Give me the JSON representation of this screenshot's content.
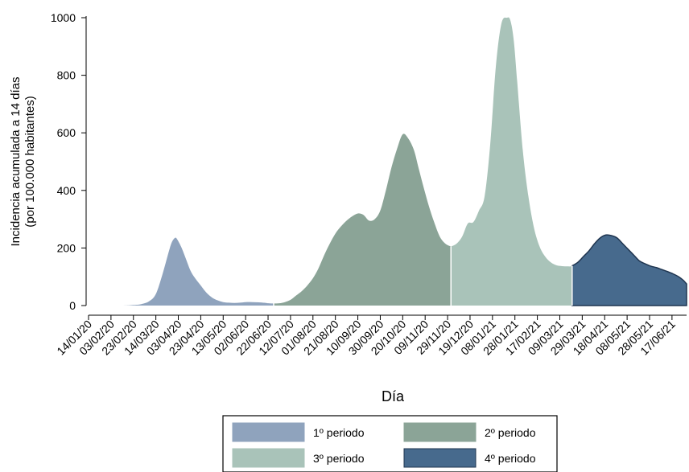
{
  "chart_data": {
    "type": "area",
    "xlabel": "Día",
    "ylabel": [
      "Incidencia acumulada a 14 días",
      "(por 100.000 habitantes)"
    ],
    "ylim": [
      0,
      1000
    ],
    "yticks": [
      0,
      200,
      400,
      600,
      800,
      1000
    ],
    "x_range": [
      "14/01/20",
      "30/06/21"
    ],
    "xticks": [
      "14/01/20",
      "03/02/20",
      "23/02/20",
      "14/03/20",
      "03/04/20",
      "23/04/20",
      "13/05/20",
      "02/06/20",
      "22/06/20",
      "12/07/20",
      "01/08/20",
      "21/08/20",
      "10/09/20",
      "30/09/20",
      "20/10/20",
      "09/11/20",
      "29/11/20",
      "19/12/20",
      "08/01/21",
      "28/01/21",
      "17/02/21",
      "09/03/21",
      "29/03/21",
      "18/04/21",
      "08/05/21",
      "28/05/21",
      "17/06/21"
    ],
    "grid": false,
    "legend_position": "bottom",
    "series": [
      {
        "name": "1º periodo",
        "color": "#8fa3bd",
        "x": [
          "14/01/20",
          "13/02/20",
          "23/02/20",
          "01/03/20",
          "08/03/20",
          "14/03/20",
          "20/03/20",
          "25/03/20",
          "28/03/20",
          "31/03/20",
          "02/04/20",
          "06/04/20",
          "10/04/20",
          "14/04/20",
          "18/04/20",
          "23/04/20",
          "28/04/20",
          "03/05/20",
          "08/05/20",
          "13/05/20",
          "18/05/20",
          "23/05/20",
          "28/05/20",
          "02/06/20",
          "08/06/20",
          "14/06/20",
          "20/06/20",
          "22/06/20",
          "27/06/20"
        ],
        "values": [
          0,
          0,
          2,
          5,
          15,
          40,
          110,
          180,
          218,
          235,
          230,
          200,
          160,
          120,
          95,
          70,
          45,
          28,
          18,
          12,
          10,
          9,
          10,
          12,
          12,
          11,
          9,
          8,
          7
        ]
      },
      {
        "name": "2º periodo",
        "color": "#8ba497",
        "x": [
          "27/06/20",
          "02/07/20",
          "07/07/20",
          "12/07/20",
          "17/07/20",
          "22/07/20",
          "27/07/20",
          "01/08/20",
          "06/08/20",
          "11/08/20",
          "16/08/20",
          "21/08/20",
          "26/08/20",
          "31/08/20",
          "05/09/20",
          "10/09/20",
          "15/09/20",
          "20/09/20",
          "25/09/20",
          "30/09/20",
          "05/10/20",
          "10/10/20",
          "15/10/20",
          "20/10/20",
          "25/10/20",
          "30/10/20",
          "03/11/20",
          "07/11/20",
          "12/11/20",
          "17/11/20",
          "22/11/20",
          "27/11/20",
          "02/12/20"
        ],
        "values": [
          7,
          8,
          12,
          20,
          35,
          50,
          70,
          95,
          130,
          175,
          215,
          250,
          275,
          295,
          310,
          320,
          315,
          295,
          300,
          330,
          400,
          480,
          545,
          595,
          580,
          540,
          480,
          420,
          350,
          290,
          240,
          215,
          205
        ]
      },
      {
        "name": "3º periodo",
        "color": "#a9c3b9",
        "x": [
          "02/12/20",
          "07/12/20",
          "12/12/20",
          "17/12/20",
          "22/12/20",
          "27/12/20",
          "01/01/21",
          "06/01/21",
          "11/01/21",
          "16/01/21",
          "21/01/21",
          "24/01/21",
          "27/01/21",
          "30/01/21",
          "04/02/21",
          "09/02/21",
          "14/02/21",
          "19/02/21",
          "24/02/21",
          "01/03/21",
          "06/03/21",
          "11/03/21",
          "16/03/21",
          "20/03/21"
        ],
        "values": [
          205,
          215,
          240,
          285,
          290,
          330,
          380,
          560,
          830,
          980,
          1000,
          990,
          920,
          780,
          540,
          380,
          270,
          205,
          170,
          150,
          140,
          137,
          136,
          136
        ]
      },
      {
        "name": "4º periodo",
        "color": "#476a8d",
        "x": [
          "20/03/21",
          "25/03/21",
          "30/03/21",
          "04/04/21",
          "09/04/21",
          "14/04/21",
          "19/04/21",
          "24/04/21",
          "29/04/21",
          "04/05/21",
          "09/05/21",
          "14/05/21",
          "19/05/21",
          "24/05/21",
          "29/05/21",
          "03/06/21",
          "08/06/21",
          "13/06/21",
          "18/06/21",
          "23/06/21",
          "27/06/21",
          "30/06/21"
        ],
        "values": [
          138,
          150,
          170,
          190,
          215,
          235,
          245,
          243,
          235,
          215,
          195,
          175,
          155,
          145,
          137,
          132,
          125,
          118,
          110,
          100,
          88,
          75
        ]
      }
    ]
  }
}
